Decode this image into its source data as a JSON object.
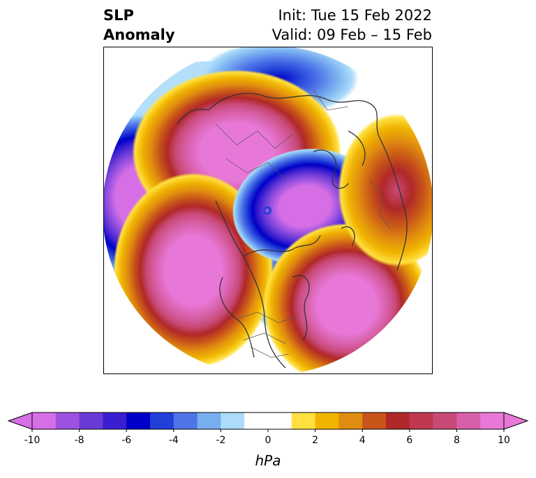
{
  "header": {
    "left_line1": "SLP",
    "left_line2": "Anomaly",
    "right_line1": "Init: Tue 15 Feb 2022",
    "right_line2": "Valid: 09 Feb – 15 Feb"
  },
  "colorbar": {
    "unit_label": "hPa",
    "ticks": [
      "-10",
      "-8",
      "-6",
      "-4",
      "-2",
      "0",
      "2",
      "4",
      "6",
      "8",
      "10"
    ],
    "min_color": "#d66fe6",
    "max_color": "#e878d8",
    "colors": [
      "#d66fe6",
      "#9b52e0",
      "#6a3ad6",
      "#3a1fd0",
      "#0000c8",
      "#2240d8",
      "#4e74e8",
      "#78aef0",
      "#acdcfa",
      "#ffffff",
      "#ffffff",
      "#ffe040",
      "#f0b400",
      "#e08c10",
      "#c85518",
      "#b02828",
      "#c03850",
      "#c84a78",
      "#d860a8",
      "#e878d8"
    ]
  },
  "map": {
    "projection": "north-polar-stereographic",
    "features": [
      {
        "name": "pacific-low",
        "sign": "negative",
        "peak": "-10"
      },
      {
        "name": "alaska-ridge",
        "sign": "positive",
        "peak": "10"
      },
      {
        "name": "arctic-low",
        "sign": "negative",
        "peak": "-10"
      },
      {
        "name": "eurasia-high",
        "sign": "positive",
        "peak": "10"
      },
      {
        "name": "north-atlantic-high",
        "sign": "positive",
        "peak": "10"
      },
      {
        "name": "siberia-low",
        "sign": "negative",
        "peak": "-6"
      },
      {
        "name": "hudson-low",
        "sign": "negative",
        "peak": "-6"
      }
    ]
  }
}
